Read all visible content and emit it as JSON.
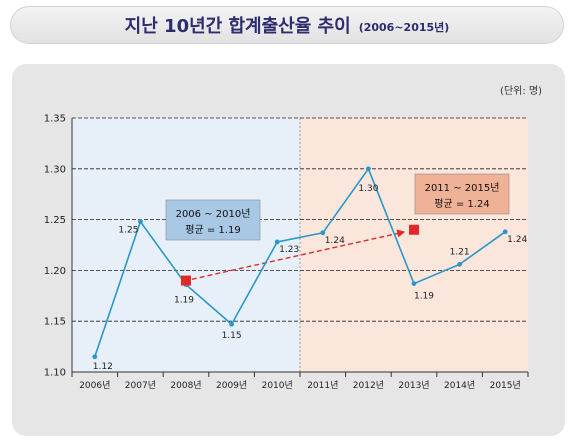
{
  "title": {
    "main": "지난 10년간 합계출산율 추이",
    "sub": "(2006~2015년)"
  },
  "colors": {
    "line": "#2b97c9",
    "avg_marker": "#e02a2a",
    "left_region": "#e7f0f8",
    "right_region": "#fbe6dc",
    "left_box": "#a9c8e5",
    "right_box": "#f0b296"
  },
  "chart_data": {
    "type": "line",
    "unit_label": "(단위: 명)",
    "categories": [
      "2006년",
      "2007년",
      "2008년",
      "2009년",
      "2010년",
      "2011년",
      "2012년",
      "2013년",
      "2014년",
      "2015년"
    ],
    "values": [
      1.115,
      1.248,
      1.186,
      1.147,
      1.228,
      1.237,
      1.3,
      1.187,
      1.206,
      1.238
    ],
    "point_labels": [
      "1.12",
      "1.25",
      "1.19",
      "1.15",
      "1.23",
      "1.24",
      "1.30",
      "1.19",
      "1.21",
      "1.24"
    ],
    "ylim": [
      1.1,
      1.35
    ],
    "yticks": [
      "1.10",
      "1.15",
      "1.20",
      "1.25",
      "1.30",
      "1.35"
    ],
    "averages": [
      {
        "period": "2006 ~ 2010년",
        "label": "평균 = 1.19",
        "value": 1.19,
        "category_index": 2
      },
      {
        "period": "2011 ~ 2015년",
        "label": "평균 = 1.24",
        "value": 1.24,
        "category_index": 7
      }
    ],
    "grid": true
  }
}
